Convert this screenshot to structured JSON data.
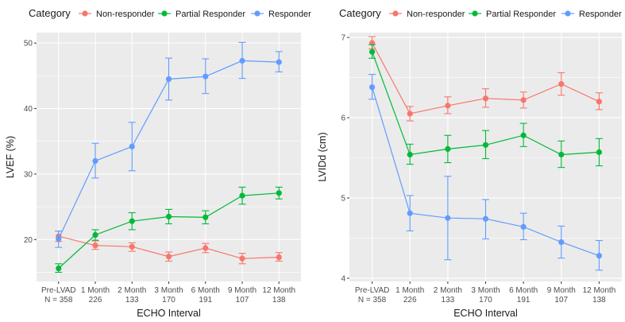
{
  "legend": {
    "title": "Category",
    "entries": [
      {
        "name": "Non-responder",
        "color": "#F8766D"
      },
      {
        "name": "Partial Responder",
        "color": "#00BA38"
      },
      {
        "name": "Responder",
        "color": "#619CFF"
      }
    ]
  },
  "chart_data": [
    {
      "type": "line",
      "xlabel": "ECHO Interval",
      "ylabel": "LVEF (%)",
      "x_tick_labels": [
        [
          "Pre-LVAD",
          "N = 358"
        ],
        [
          "1 Month",
          "226"
        ],
        [
          "2 Month",
          "133"
        ],
        [
          "3 Month",
          "170"
        ],
        [
          "6 Month",
          "191"
        ],
        [
          "9 Month",
          "107"
        ],
        [
          "12 Month",
          "138"
        ]
      ],
      "ylim": [
        13.6,
        51.6
      ],
      "yticks": [
        20,
        30,
        40,
        50
      ],
      "grid": true,
      "series": [
        {
          "name": "Non-responder",
          "color": "#F8766D",
          "values": [
            20.5,
            19.1,
            18.9,
            17.4,
            18.7,
            17.1,
            17.3
          ],
          "lower": [
            19.7,
            18.5,
            18.2,
            16.7,
            18.0,
            16.3,
            16.7
          ],
          "upper": [
            21.3,
            19.8,
            19.5,
            18.1,
            19.4,
            17.9,
            18.0
          ]
        },
        {
          "name": "Partial Responder",
          "color": "#00BA38",
          "values": [
            15.6,
            20.7,
            22.8,
            23.5,
            23.4,
            26.7,
            27.1
          ],
          "lower": [
            15.0,
            19.9,
            21.5,
            22.4,
            22.4,
            25.4,
            26.2
          ],
          "upper": [
            16.3,
            21.5,
            24.1,
            24.6,
            24.4,
            28.0,
            28.0
          ]
        },
        {
          "name": "Responder",
          "color": "#619CFF",
          "values": [
            20.1,
            32.0,
            34.2,
            44.5,
            44.9,
            47.3,
            47.1
          ],
          "lower": [
            18.8,
            29.4,
            30.5,
            41.3,
            42.3,
            44.6,
            45.6
          ],
          "upper": [
            21.3,
            34.7,
            37.9,
            47.7,
            47.6,
            50.1,
            48.7
          ]
        }
      ]
    },
    {
      "type": "line",
      "xlabel": "ECHO Interval",
      "ylabel": "LVIDd (cm)",
      "x_tick_labels": [
        [
          "Pre-LVAD",
          "N = 358"
        ],
        [
          "1 Month",
          "226"
        ],
        [
          "2 Month",
          "133"
        ],
        [
          "3 Month",
          "170"
        ],
        [
          "6 Month",
          "191"
        ],
        [
          "9 Month",
          "107"
        ],
        [
          "12 Month",
          "138"
        ]
      ],
      "ylim": [
        3.96,
        7.06
      ],
      "yticks": [
        4,
        5,
        6,
        7
      ],
      "grid": true,
      "series": [
        {
          "name": "Non-responder",
          "color": "#F8766D",
          "values": [
            6.93,
            6.05,
            6.15,
            6.24,
            6.22,
            6.42,
            6.2
          ],
          "lower": [
            6.86,
            5.96,
            6.05,
            6.13,
            6.12,
            6.28,
            6.1
          ],
          "upper": [
            7.01,
            6.14,
            6.26,
            6.36,
            6.32,
            6.56,
            6.31
          ]
        },
        {
          "name": "Partial Responder",
          "color": "#00BA38",
          "values": [
            6.82,
            5.54,
            5.61,
            5.66,
            5.78,
            5.54,
            5.57
          ],
          "lower": [
            6.74,
            5.42,
            5.44,
            5.49,
            5.64,
            5.38,
            5.4
          ],
          "upper": [
            6.91,
            5.67,
            5.78,
            5.84,
            5.93,
            5.71,
            5.74
          ]
        },
        {
          "name": "Responder",
          "color": "#619CFF",
          "values": [
            6.38,
            4.81,
            4.75,
            4.74,
            4.64,
            4.45,
            4.28
          ],
          "lower": [
            6.23,
            4.59,
            4.23,
            4.49,
            4.48,
            4.25,
            4.1
          ],
          "upper": [
            6.54,
            5.03,
            5.27,
            4.98,
            4.81,
            4.65,
            4.47
          ]
        }
      ]
    }
  ]
}
